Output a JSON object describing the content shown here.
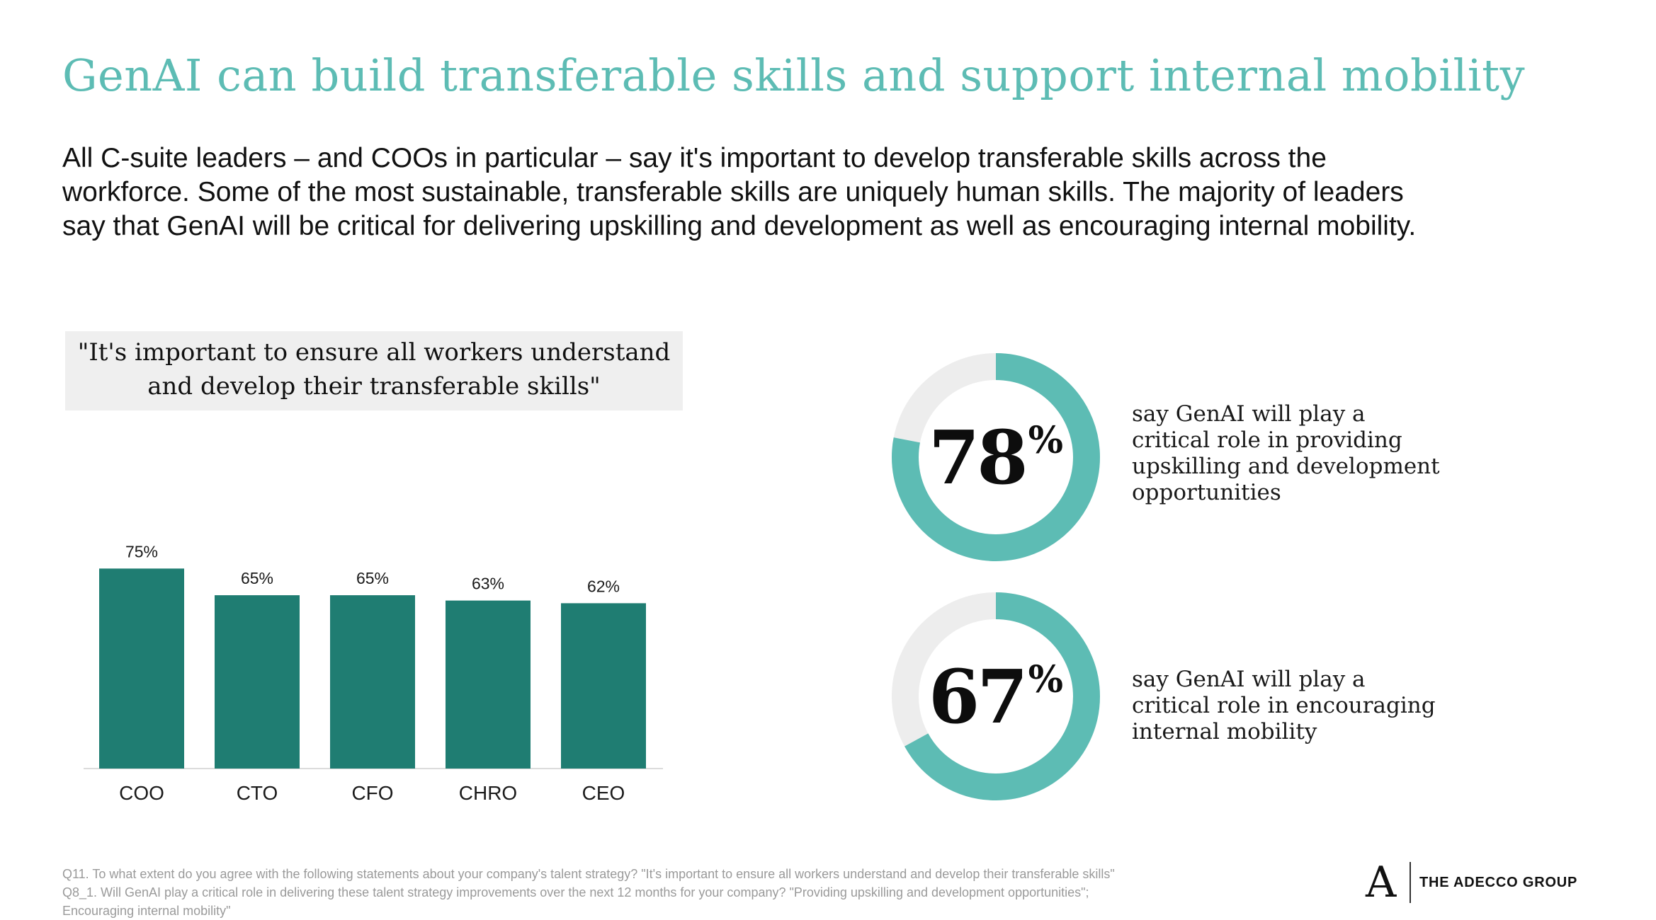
{
  "title": "GenAI can build transferable skills and support internal mobility",
  "intro": {
    "line1": "All C-suite leaders – and COOs in particular – say it's important to develop transferable skills across the",
    "line2": "workforce. Some of the most sustainable, transferable skills are uniquely human skills. The majority of leaders",
    "line3": "say that GenAI will be critical for delivering upskilling and development as well as encouraging internal mobility."
  },
  "chart_quote": {
    "line1": "\"It's important to ensure all workers understand",
    "line2": "and develop their transferable skills\""
  },
  "chart_data": [
    {
      "type": "bar",
      "title": "\"It's important to ensure all workers understand and develop their transferable skills\"",
      "categories": [
        "COO",
        "CTO",
        "CFO",
        "CHRO",
        "CEO"
      ],
      "values": [
        75,
        65,
        65,
        63,
        62
      ],
      "value_labels": [
        "75%",
        "65%",
        "65%",
        "63%",
        "62%"
      ],
      "ylim": [
        0,
        100
      ],
      "grid": false,
      "legend": "none",
      "color": "#1f7d72"
    },
    {
      "type": "pie",
      "style": "donut",
      "values": [
        78,
        22
      ],
      "label": "78%",
      "description": [
        "say GenAI will play a",
        "critical role in providing",
        "upskilling and development",
        "opportunities"
      ],
      "colors": [
        "#5dbcb4",
        "#ededed"
      ]
    },
    {
      "type": "pie",
      "style": "donut",
      "values": [
        67,
        33
      ],
      "label": "67%",
      "description": [
        "say GenAI will play a",
        "critical role in encouraging",
        "internal mobility"
      ],
      "colors": [
        "#5dbcb4",
        "#ededed"
      ]
    }
  ],
  "donut1": {
    "num": "78",
    "sym": "%"
  },
  "donut2": {
    "num": "67",
    "sym": "%"
  },
  "footnotes": {
    "line1": "Q11. To what extent do you agree with the following statements about your company's talent strategy? \"It's important to ensure all workers understand and develop their transferable skills\"",
    "line2": "Q8_1. Will GenAI play a critical role in delivering these talent strategy improvements over the next 12 months for your company? \"Providing upskilling and development opportunities\";",
    "line3": "Encouraging internal mobility\""
  },
  "logo": {
    "mark": "A",
    "text": "THE ADECCO GROUP"
  }
}
